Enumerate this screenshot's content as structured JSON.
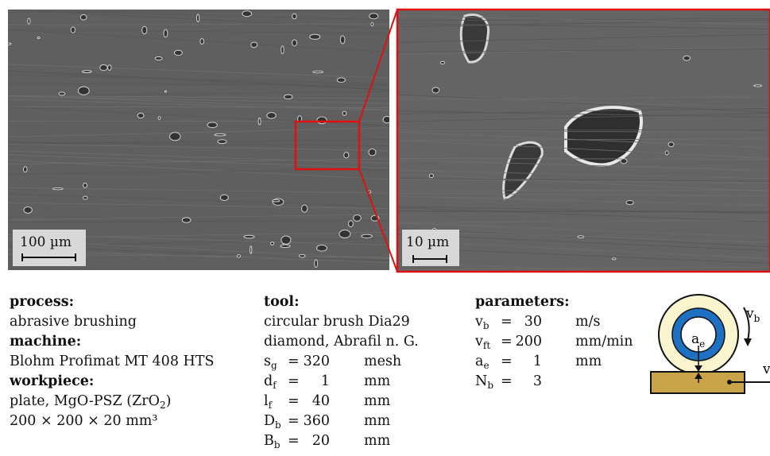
{
  "images": [
    {
      "scale_bar": "100 µm"
    },
    {
      "scale_bar": "10 µm"
    }
  ],
  "process": {
    "heading": "process:",
    "value": "abrasive brushing"
  },
  "machine": {
    "heading": "machine:",
    "value": "Blohm Profimat MT 408 HTS"
  },
  "workpiece": {
    "heading": "workpiece:",
    "lines": [
      {
        "text": "plate, MgO-PSZ (ZrO",
        "sub": "2",
        "tail": ")"
      },
      {
        "text": "200 × 200 × 20 mm³"
      }
    ]
  },
  "tool": {
    "heading": "tool:",
    "lines": [
      "circular brush Dia29",
      "diamond, Abrafil n. G."
    ],
    "rows": [
      {
        "symbol": "s",
        "sub": "g",
        "op": "=",
        "value": "320",
        "unit": "mesh"
      },
      {
        "symbol": "d",
        "sub": "f",
        "op": "=",
        "value": "1",
        "unit": "mm"
      },
      {
        "symbol": "l",
        "sub": "f",
        "op": "=",
        "value": "40",
        "unit": "mm"
      },
      {
        "symbol": "D",
        "sub": "b",
        "op": "=",
        "value": "360",
        "unit": "mm"
      },
      {
        "symbol": "B",
        "sub": "b",
        "op": "=",
        "value": "20",
        "unit": "mm"
      }
    ]
  },
  "parameters": {
    "heading": "parameters:",
    "rows": [
      {
        "symbol": "v",
        "sub": "b",
        "op": "=",
        "value": "30",
        "unit": "m/s"
      },
      {
        "symbol": "v",
        "sub": "ft",
        "op": "=",
        "value": "200",
        "unit": "mm/min"
      },
      {
        "symbol": "a",
        "sub": "e",
        "op": "=",
        "value": "1",
        "unit": "mm"
      },
      {
        "symbol": "N",
        "sub": "b",
        "op": "=",
        "value": "3"
      }
    ]
  },
  "diagram": {
    "brush_speed": {
      "symbol": "v",
      "sub": "b"
    },
    "depth": {
      "symbol": "a",
      "sub": "e"
    },
    "feed": {
      "symbol": "v"
    }
  }
}
